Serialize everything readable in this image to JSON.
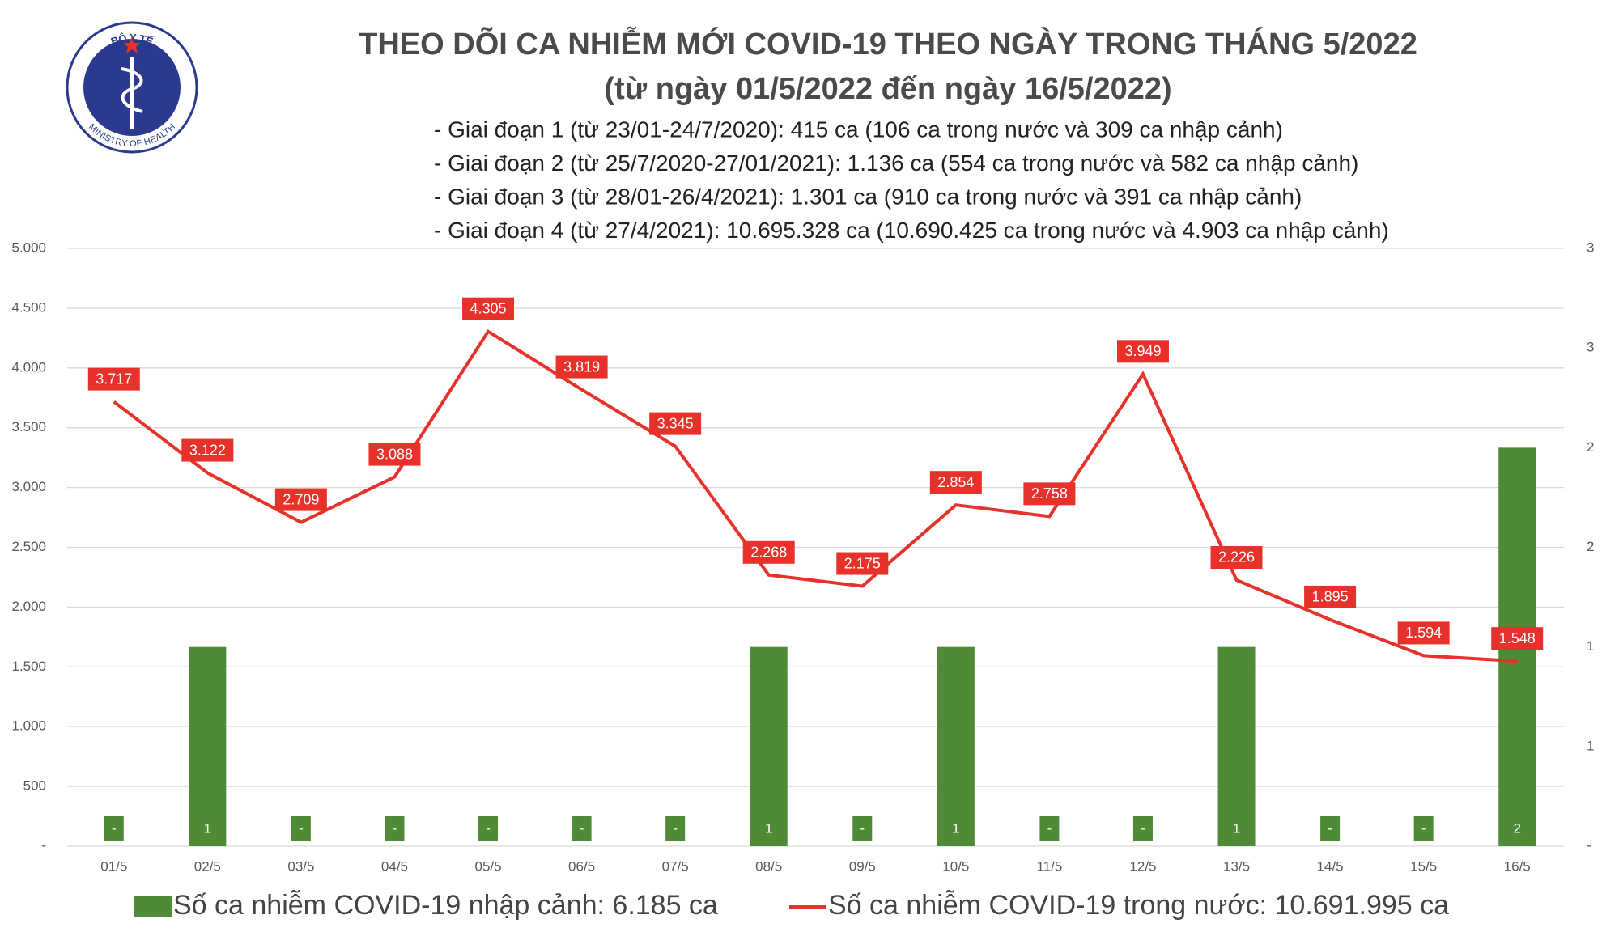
{
  "logo": {
    "top": "BỘ Y TẾ",
    "bottom": "MINISTRY OF HEALTH"
  },
  "chart_data": {
    "type": "combo",
    "title": "THEO DÕI CA NHIỄM MỚI COVID-19 THEO NGÀY TRONG THÁNG 5/2022",
    "subtitle": "(từ ngày 01/5/2022 đến ngày 16/5/2022)",
    "notes": [
      "- Giai đoạn 1 (từ 23/01-24/7/2020): 415 ca (106 ca trong nước và 309 ca nhập cảnh)",
      "- Giai đoạn 2 (từ 25/7/2020-27/01/2021): 1.136 ca (554 ca trong nước và 582 ca nhập cảnh)",
      "- Giai đoạn 3 (từ 28/01-26/4/2021): 1.301 ca (910 ca trong nước và 391 ca nhập cảnh)",
      "- Giai đoạn 4 (từ 27/4/2021): 10.695.328 ca (10.690.425 ca trong nước và 4.903 ca nhập cảnh)"
    ],
    "categories": [
      "01/5",
      "02/5",
      "03/5",
      "04/5",
      "05/5",
      "06/5",
      "07/5",
      "08/5",
      "09/5",
      "10/5",
      "11/5",
      "12/5",
      "13/5",
      "14/5",
      "15/5",
      "16/5"
    ],
    "series": [
      {
        "name": "Số ca nhiễm COVID-19 nhập cảnh: 6.185 ca",
        "type": "bar",
        "axis": "y2",
        "color": "#4f8a37",
        "values": [
          0,
          1,
          0,
          0,
          0,
          0,
          0,
          1,
          0,
          1,
          0,
          0,
          1,
          0,
          0,
          2
        ],
        "value_labels": [
          "-",
          "1",
          "-",
          "-",
          "-",
          "-",
          "-",
          "1",
          "-",
          "1",
          "-",
          "-",
          "1",
          "-",
          "-",
          "2"
        ]
      },
      {
        "name": "Số ca nhiễm COVID-19 trong nước: 10.691.995 ca",
        "type": "line",
        "color": "#e8312a",
        "values": [
          3717,
          3122,
          2709,
          3088,
          4305,
          3819,
          3345,
          2268,
          2175,
          2854,
          2758,
          3949,
          2226,
          1895,
          1594,
          1548
        ],
        "value_labels": [
          "3.717",
          "3.122",
          "2.709",
          "3.088",
          "4.305",
          "3.819",
          "3.345",
          "2.268",
          "2.175",
          "2.854",
          "2.758",
          "3.949",
          "2.226",
          "1.895",
          "1.594",
          "1.548"
        ]
      }
    ],
    "ylim": [
      0,
      5000
    ],
    "yticks": [
      {
        "value": 0,
        "label": "-"
      },
      500,
      {
        "value": 1000,
        "label": "1.000"
      },
      {
        "value": 1500,
        "label": "1.500"
      },
      {
        "value": 2000,
        "label": "2.000"
      },
      {
        "value": 2500,
        "label": "2.500"
      },
      {
        "value": 3000,
        "label": "3.000"
      },
      {
        "value": 3500,
        "label": "3.500"
      },
      {
        "value": 4000,
        "label": "4.000"
      },
      {
        "value": 4500,
        "label": "4.500"
      },
      {
        "value": 5000,
        "label": "5.000"
      }
    ],
    "y2lim": [
      0,
      3
    ],
    "y2ticks": [
      {
        "value": 0,
        "label": "-"
      },
      {
        "value": 0.5,
        "label": "1"
      },
      1,
      {
        "value": 1.5,
        "label": "2"
      },
      2,
      {
        "value": 2.5,
        "label": "3"
      },
      3
    ],
    "grid": true
  }
}
